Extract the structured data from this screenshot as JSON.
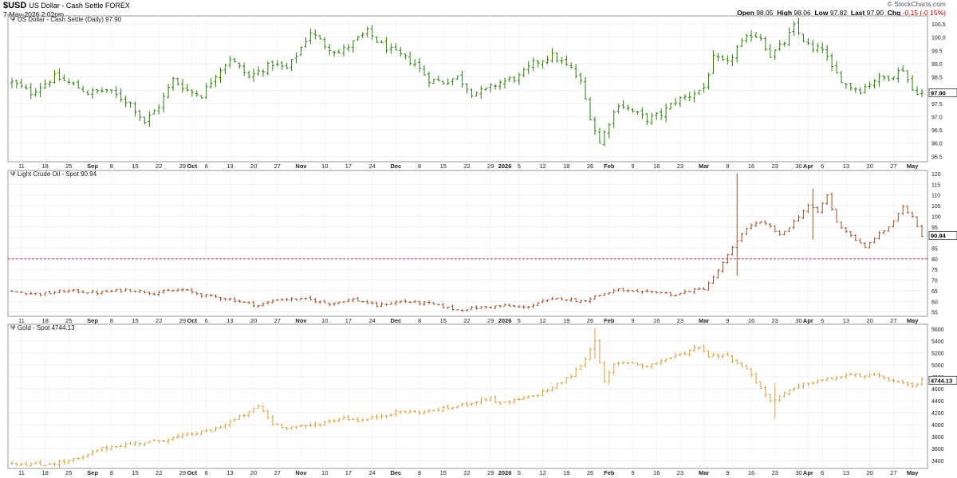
{
  "header": {
    "symbol": "$USD",
    "symbol_desc": "US Dollar - Cash Settle FOREX",
    "date": "7-May-2026 2:02pm",
    "brand": "© StockCharts.com",
    "open_label": "Open",
    "open": "98.05",
    "high_label": "High",
    "high": "98.06",
    "low_label": "Low",
    "low": "97.82",
    "last_label": "Last",
    "last": "97.90",
    "chg_label": "Chg",
    "chg": "-0.15 (-0.15%)"
  },
  "x_axis": {
    "labels": [
      {
        "t": "11",
        "i": 2
      },
      {
        "t": "18",
        "i": 7
      },
      {
        "t": "25",
        "i": 12
      },
      {
        "t": "Sep",
        "i": 17,
        "bold": true
      },
      {
        "t": "8",
        "i": 21
      },
      {
        "t": "15",
        "i": 26
      },
      {
        "t": "22",
        "i": 31
      },
      {
        "t": "29",
        "i": 36
      },
      {
        "t": "Oct",
        "i": 38,
        "bold": true
      },
      {
        "t": "6",
        "i": 41
      },
      {
        "t": "13",
        "i": 46
      },
      {
        "t": "20",
        "i": 51
      },
      {
        "t": "27",
        "i": 56
      },
      {
        "t": "Nov",
        "i": 61,
        "bold": true
      },
      {
        "t": "10",
        "i": 66
      },
      {
        "t": "17",
        "i": 71
      },
      {
        "t": "24",
        "i": 76
      },
      {
        "t": "Dec",
        "i": 81,
        "bold": true
      },
      {
        "t": "8",
        "i": 86
      },
      {
        "t": "15",
        "i": 91
      },
      {
        "t": "22",
        "i": 96
      },
      {
        "t": "29",
        "i": 101
      },
      {
        "t": "2026",
        "i": 104,
        "bold": true
      },
      {
        "t": "5",
        "i": 107
      },
      {
        "t": "12",
        "i": 112
      },
      {
        "t": "19",
        "i": 117
      },
      {
        "t": "26",
        "i": 122
      },
      {
        "t": "Feb",
        "i": 126,
        "bold": true
      },
      {
        "t": "9",
        "i": 131
      },
      {
        "t": "16",
        "i": 136
      },
      {
        "t": "23",
        "i": 141
      },
      {
        "t": "Mar",
        "i": 146,
        "bold": true
      },
      {
        "t": "9",
        "i": 151
      },
      {
        "t": "16",
        "i": 156
      },
      {
        "t": "23",
        "i": 161
      },
      {
        "t": "30",
        "i": 166
      },
      {
        "t": "Apr",
        "i": 168,
        "bold": true
      },
      {
        "t": "6",
        "i": 171
      },
      {
        "t": "13",
        "i": 176
      },
      {
        "t": "20",
        "i": 181
      },
      {
        "t": "27",
        "i": 186
      },
      {
        "t": "May",
        "i": 190,
        "bold": true
      }
    ]
  },
  "chart_data": [
    {
      "type": "ohlc",
      "name": "US Dollar - Cash Settle (Daily) 97.90",
      "color": "#2e7d0e",
      "last_value": "97.90",
      "ylim": [
        95.3,
        100.8
      ],
      "yticks": [
        "95.5",
        "96.0",
        "96.5",
        "97.0",
        "97.5",
        "98.0",
        "98.5",
        "99.0",
        "99.5",
        "100.0",
        "100.5"
      ],
      "anchors": [
        [
          0,
          98.3
        ],
        [
          4,
          97.9
        ],
        [
          9,
          98.5
        ],
        [
          13,
          98.2
        ],
        [
          16,
          97.9
        ],
        [
          20,
          98.0
        ],
        [
          25,
          97.5
        ],
        [
          28,
          96.8
        ],
        [
          31,
          97.4
        ],
        [
          34,
          98.4
        ],
        [
          37,
          98.0
        ],
        [
          40,
          97.8
        ],
        [
          43,
          98.6
        ],
        [
          46,
          99.2
        ],
        [
          50,
          98.5
        ],
        [
          55,
          99.0
        ],
        [
          58,
          98.8
        ],
        [
          61,
          99.6
        ],
        [
          63,
          100.2
        ],
        [
          66,
          99.7
        ],
        [
          69,
          99.4
        ],
        [
          72,
          99.8
        ],
        [
          75,
          100.2
        ],
        [
          78,
          99.7
        ],
        [
          81,
          99.4
        ],
        [
          85,
          99.0
        ],
        [
          88,
          98.4
        ],
        [
          91,
          98.3
        ],
        [
          94,
          98.5
        ],
        [
          97,
          97.9
        ],
        [
          100,
          98.0
        ],
        [
          103,
          98.3
        ],
        [
          107,
          98.5
        ],
        [
          110,
          99.0
        ],
        [
          114,
          99.3
        ],
        [
          118,
          98.8
        ],
        [
          120,
          98.3
        ],
        [
          122,
          97.0
        ],
        [
          124,
          96.0
        ],
        [
          126,
          96.8
        ],
        [
          128,
          97.5
        ],
        [
          131,
          97.2
        ],
        [
          134,
          96.9
        ],
        [
          137,
          97.1
        ],
        [
          140,
          97.6
        ],
        [
          143,
          97.8
        ],
        [
          146,
          98.1
        ],
        [
          148,
          99.2
        ],
        [
          151,
          99.0
        ],
        [
          153,
          99.6
        ],
        [
          156,
          100.1
        ],
        [
          158,
          100.0
        ],
        [
          160,
          99.3
        ],
        [
          163,
          99.8
        ],
        [
          165,
          100.4
        ],
        [
          167,
          99.9
        ],
        [
          169,
          99.5
        ],
        [
          171,
          99.6
        ],
        [
          173,
          98.8
        ],
        [
          176,
          98.2
        ],
        [
          179,
          98.0
        ],
        [
          182,
          98.4
        ],
        [
          185,
          98.5
        ],
        [
          188,
          98.8
        ],
        [
          190,
          98.0
        ],
        [
          192,
          97.9
        ]
      ],
      "range": 0.4
    },
    {
      "type": "ohlc",
      "name": "Light Crude Oil - Spot 90.94",
      "color": "#a0522d",
      "last_value": "90.94",
      "reference_line": 80,
      "ylim": [
        53,
        121.5
      ],
      "yticks": [
        "55",
        "60",
        "65",
        "70",
        "75",
        "80",
        "85",
        "90",
        "95",
        "100",
        "105",
        "110",
        "115",
        "120"
      ],
      "anchors": [
        [
          0,
          64.5
        ],
        [
          6,
          63.5
        ],
        [
          12,
          65.0
        ],
        [
          18,
          64.0
        ],
        [
          24,
          65.5
        ],
        [
          30,
          64.0
        ],
        [
          36,
          65.5
        ],
        [
          40,
          63.0
        ],
        [
          46,
          61.0
        ],
        [
          52,
          58.0
        ],
        [
          56,
          61.0
        ],
        [
          62,
          61.0
        ],
        [
          67,
          59.0
        ],
        [
          72,
          61.0
        ],
        [
          77,
          58.0
        ],
        [
          82,
          60.0
        ],
        [
          88,
          59.0
        ],
        [
          94,
          56.0
        ],
        [
          98,
          57.0
        ],
        [
          104,
          58.0
        ],
        [
          108,
          57.0
        ],
        [
          112,
          60.0
        ],
        [
          116,
          61.5
        ],
        [
          120,
          60.0
        ],
        [
          124,
          63.0
        ],
        [
          128,
          65.5
        ],
        [
          132,
          64.0
        ],
        [
          136,
          64.5
        ],
        [
          140,
          63.0
        ],
        [
          143,
          65.0
        ],
        [
          146,
          66.0
        ],
        [
          148,
          71.0
        ],
        [
          150,
          78.0
        ],
        [
          152,
          85.0
        ],
        [
          154,
          92.0
        ],
        [
          156,
          96.0
        ],
        [
          158,
          97.0
        ],
        [
          160,
          95.0
        ],
        [
          162,
          91.0
        ],
        [
          164,
          95.0
        ],
        [
          166,
          100.0
        ],
        [
          168,
          105.0
        ],
        [
          170,
          102.0
        ],
        [
          172,
          110.0
        ],
        [
          174,
          97.0
        ],
        [
          176,
          93.0
        ],
        [
          178,
          89.0
        ],
        [
          180,
          85.0
        ],
        [
          182,
          90.0
        ],
        [
          185,
          95.0
        ],
        [
          188,
          104.0
        ],
        [
          190,
          100.0
        ],
        [
          192,
          91.0
        ]
      ],
      "range": 2.0,
      "spikes": [
        [
          153,
          120.0,
          72.0
        ],
        [
          169,
          113.0,
          89.0
        ]
      ]
    },
    {
      "type": "ohlc",
      "name": "Gold - Spot 4744.13",
      "color": "#d4a23c",
      "last_value": "4744.13",
      "ylim": [
        3270,
        5680
      ],
      "yticks": [
        "3400",
        "3600",
        "3800",
        "4000",
        "4200",
        "4400",
        "4600",
        "4800",
        "5000",
        "5200",
        "5400",
        "5600"
      ],
      "anchors": [
        [
          0,
          3360
        ],
        [
          6,
          3330
        ],
        [
          11,
          3380
        ],
        [
          15,
          3450
        ],
        [
          18,
          3580
        ],
        [
          22,
          3650
        ],
        [
          27,
          3700
        ],
        [
          30,
          3720
        ],
        [
          34,
          3780
        ],
        [
          38,
          3850
        ],
        [
          42,
          3900
        ],
        [
          46,
          4050
        ],
        [
          50,
          4200
        ],
        [
          52,
          4320
        ],
        [
          55,
          4020
        ],
        [
          58,
          3960
        ],
        [
          62,
          3970
        ],
        [
          66,
          4040
        ],
        [
          70,
          4120
        ],
        [
          74,
          4070
        ],
        [
          78,
          4160
        ],
        [
          82,
          4220
        ],
        [
          86,
          4210
        ],
        [
          90,
          4250
        ],
        [
          94,
          4310
        ],
        [
          98,
          4400
        ],
        [
          101,
          4450
        ],
        [
          103,
          4340
        ],
        [
          106,
          4400
        ],
        [
          110,
          4480
        ],
        [
          114,
          4620
        ],
        [
          118,
          4820
        ],
        [
          121,
          5100
        ],
        [
          123,
          5420
        ],
        [
          125,
          4700
        ],
        [
          127,
          5000
        ],
        [
          130,
          5050
        ],
        [
          134,
          4980
        ],
        [
          138,
          5100
        ],
        [
          142,
          5200
        ],
        [
          145,
          5320
        ],
        [
          147,
          5150
        ],
        [
          150,
          5180
        ],
        [
          153,
          5050
        ],
        [
          156,
          4850
        ],
        [
          158,
          4600
        ],
        [
          160,
          4400
        ],
        [
          162,
          4480
        ],
        [
          165,
          4600
        ],
        [
          168,
          4700
        ],
        [
          172,
          4760
        ],
        [
          176,
          4820
        ],
        [
          180,
          4830
        ],
        [
          184,
          4780
        ],
        [
          188,
          4680
        ],
        [
          190,
          4630
        ],
        [
          192,
          4744
        ]
      ],
      "range": 90,
      "spikes": [
        [
          123,
          5620,
          5100
        ],
        [
          161,
          4700,
          4100
        ]
      ]
    }
  ]
}
